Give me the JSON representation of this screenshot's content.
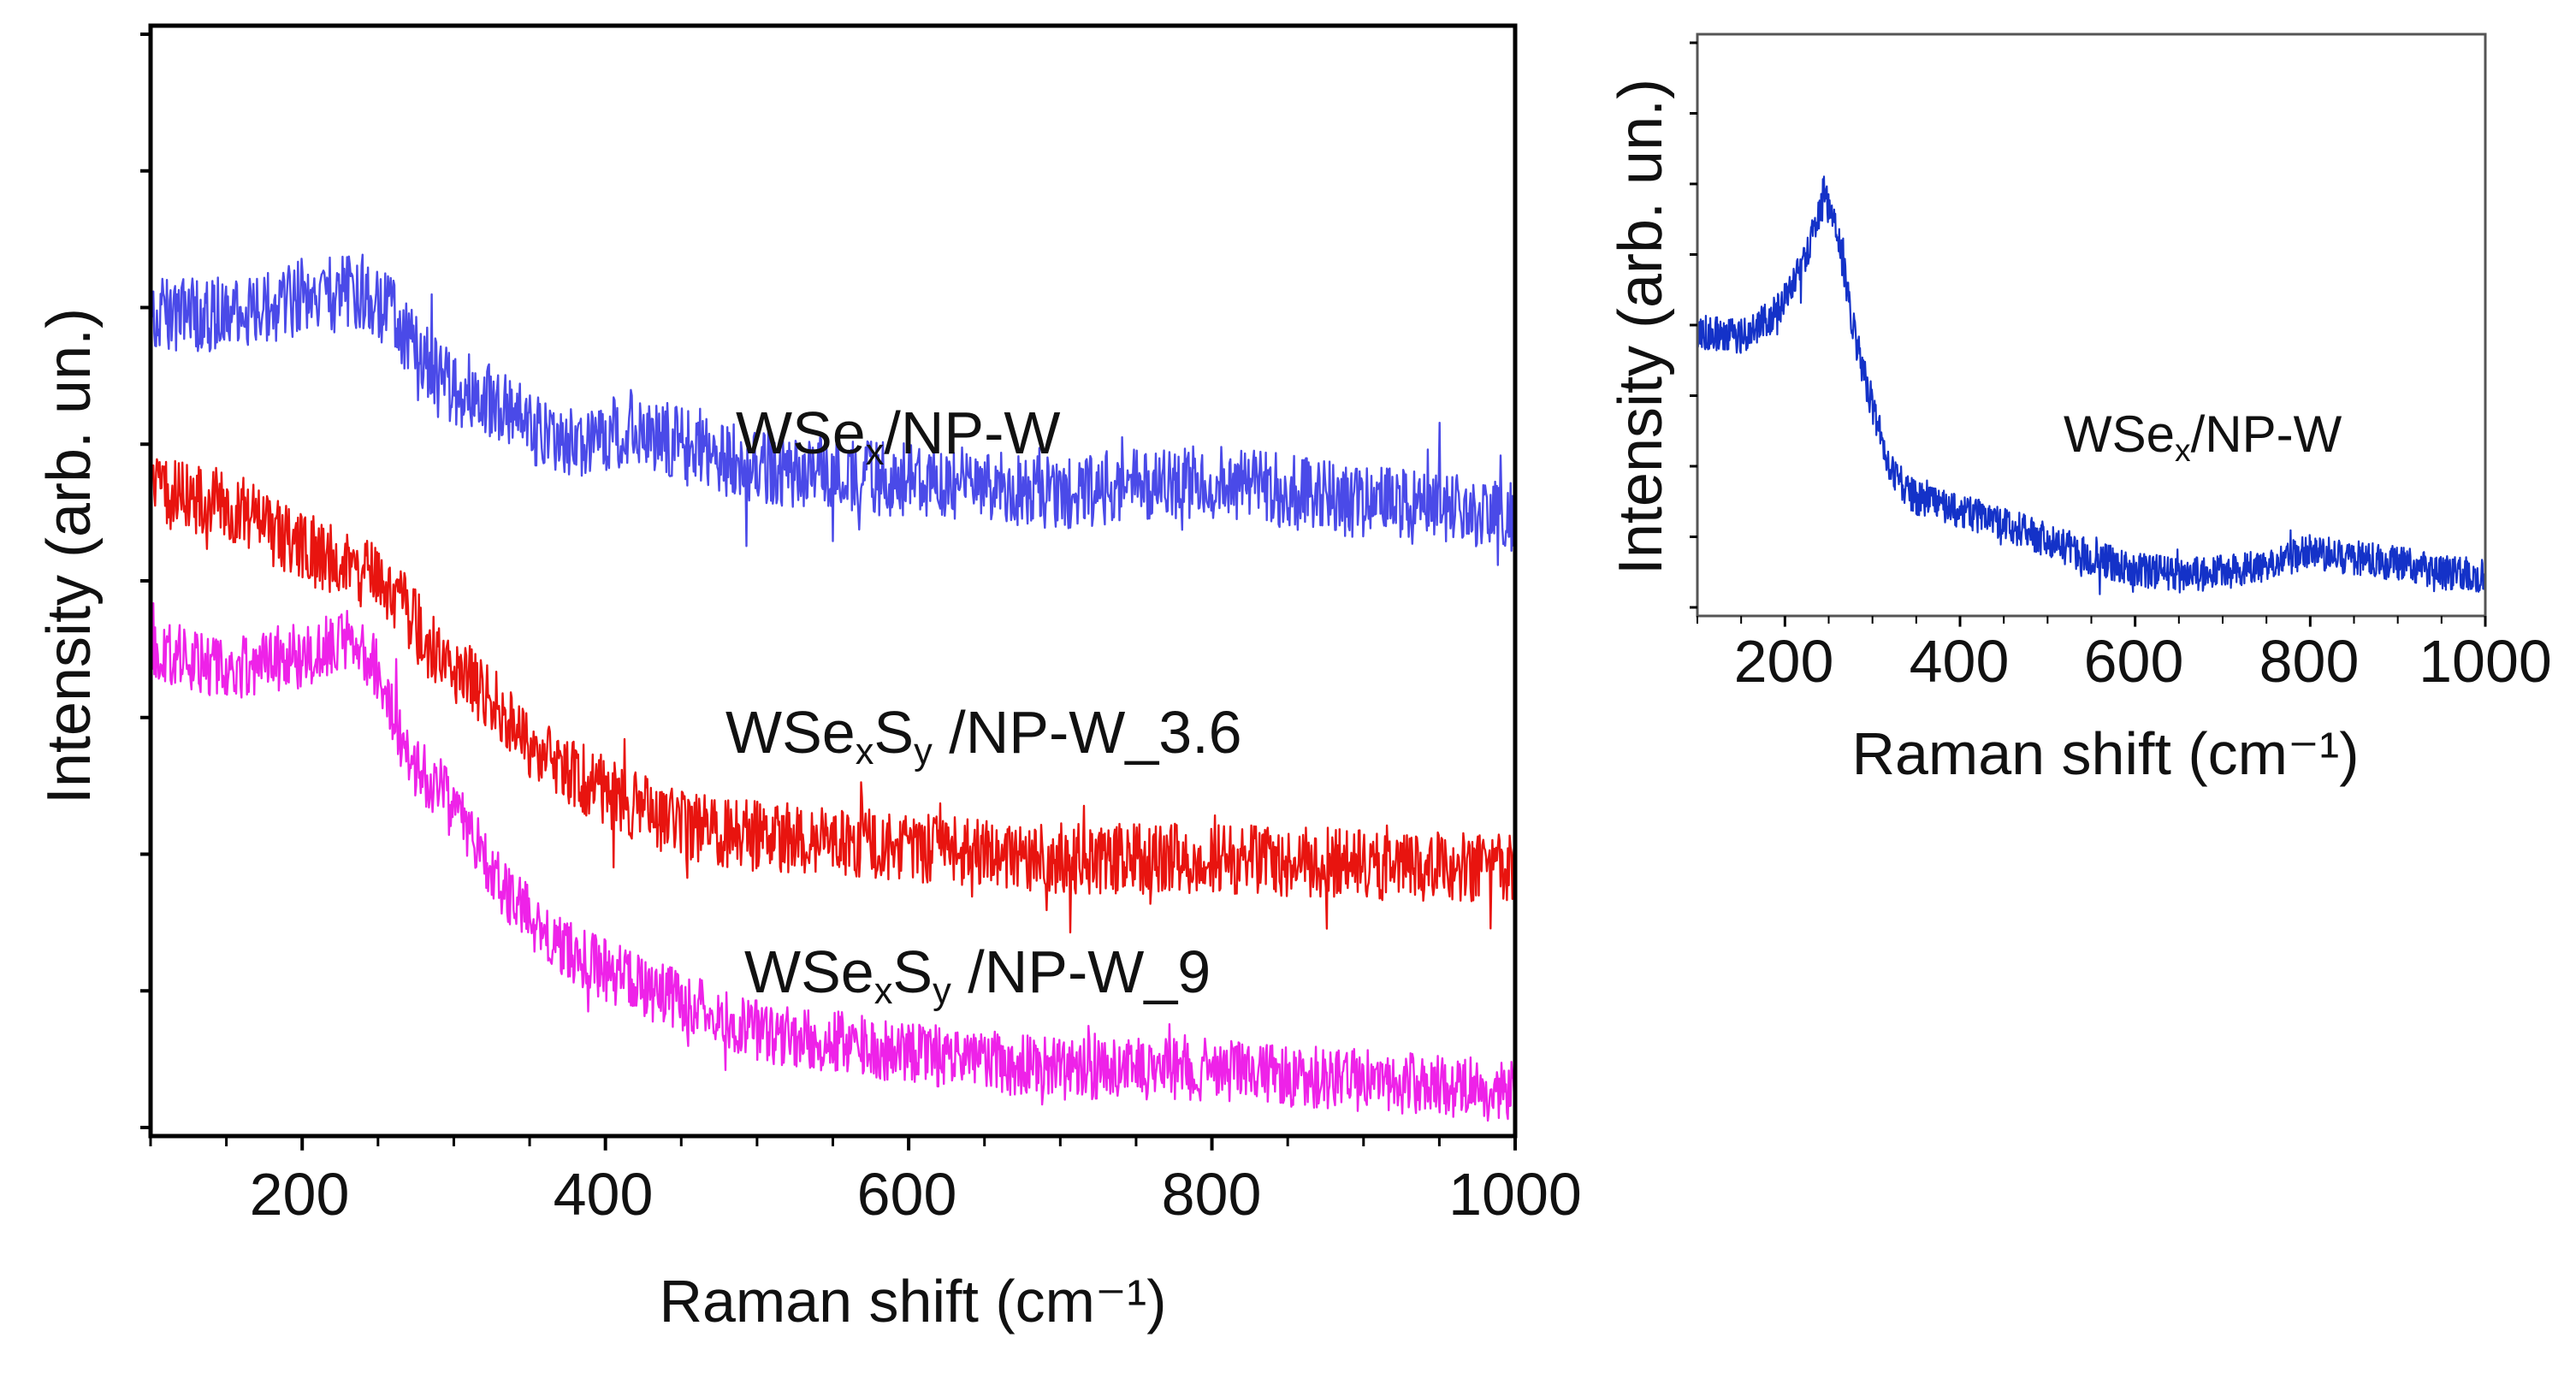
{
  "chart_data": [
    {
      "type": "line",
      "id": "main",
      "xlabel": "Raman shift (cm⁻¹)",
      "ylabel": "Intensity (arb. un.)",
      "xlim": [
        100,
        1000
      ],
      "ylim": [
        0,
        100
      ],
      "x_ticks": [
        200,
        400,
        600,
        800,
        1000
      ],
      "x_tick_labels": [
        "200",
        "400",
        "600",
        "800",
        "1000"
      ],
      "grid": false,
      "series": [
        {
          "name": "WSeₓ/NP-W",
          "label_parts": [
            {
              "t": "WSe"
            },
            {
              "t": "x",
              "sub": true
            },
            {
              "t": "/NP-W"
            }
          ],
          "color": "#4a4ae8",
          "noise": 3.4,
          "points": [
            [
              100,
              74
            ],
            [
              150,
              74
            ],
            [
              200,
              75.5
            ],
            [
              240,
              76
            ],
            [
              260,
              74
            ],
            [
              290,
              68
            ],
            [
              330,
              66
            ],
            [
              370,
              62
            ],
            [
              420,
              64
            ],
            [
              470,
              61
            ],
            [
              520,
              60
            ],
            [
              600,
              59
            ],
            [
              700,
              58
            ],
            [
              800,
              59
            ],
            [
              900,
              57
            ],
            [
              1000,
              56
            ]
          ]
        },
        {
          "name": "WSeₓSᵧ/NP-W_3.6",
          "label_parts": [
            {
              "t": "WSe"
            },
            {
              "t": "x",
              "sub": true
            },
            {
              "t": "S"
            },
            {
              "t": "y",
              "sub": true
            },
            {
              "t": " /NP-W_3.6"
            }
          ],
          "color": "#e8140f",
          "noise": 3.2,
          "points": [
            [
              100,
              58
            ],
            [
              150,
              57
            ],
            [
              200,
              53
            ],
            [
              240,
              51
            ],
            [
              260,
              49
            ],
            [
              290,
              43
            ],
            [
              320,
              40
            ],
            [
              350,
              35
            ],
            [
              400,
              31
            ],
            [
              450,
              28
            ],
            [
              500,
              27
            ],
            [
              600,
              26
            ],
            [
              700,
              25
            ],
            [
              800,
              25
            ],
            [
              900,
              24.5
            ],
            [
              1000,
              24
            ]
          ]
        },
        {
          "name": "WSeₓSᵧ/NP-W_9",
          "label_parts": [
            {
              "t": "WSe"
            },
            {
              "t": "x",
              "sub": true
            },
            {
              "t": "S"
            },
            {
              "t": "y",
              "sub": true
            },
            {
              "t": " /NP-W_9"
            }
          ],
          "color": "#ee22e8",
          "noise": 2.8,
          "points": [
            [
              100,
              44
            ],
            [
              150,
              42
            ],
            [
              200,
              43
            ],
            [
              230,
              45
            ],
            [
              250,
              42
            ],
            [
              270,
              34
            ],
            [
              300,
              30
            ],
            [
              330,
              23
            ],
            [
              360,
              18
            ],
            [
              400,
              15
            ],
            [
              450,
              12
            ],
            [
              500,
              9.5
            ],
            [
              600,
              7.5
            ],
            [
              700,
              6
            ],
            [
              800,
              6
            ],
            [
              900,
              5
            ],
            [
              1000,
              4
            ]
          ]
        }
      ]
    },
    {
      "type": "line",
      "id": "inset",
      "xlabel": "Raman shift (cm⁻¹)",
      "ylabel": "Intensity (arb. un.)",
      "xlim": [
        100,
        1000
      ],
      "ylim": [
        0,
        100
      ],
      "x_ticks": [
        200,
        400,
        600,
        800,
        1000
      ],
      "x_tick_labels": [
        "200",
        "400",
        "600",
        "800",
        "1000"
      ],
      "grid": false,
      "series": [
        {
          "name": "WSeₓ/NP-W",
          "label_parts": [
            {
              "t": "WSe"
            },
            {
              "t": "x",
              "sub": true
            },
            {
              "t": "/NP-W"
            }
          ],
          "color": "#1432c8",
          "noise": 3.0,
          "points": [
            [
              100,
              49
            ],
            [
              150,
              48
            ],
            [
              190,
              52
            ],
            [
              220,
              60
            ],
            [
              245,
              72
            ],
            [
              260,
              66
            ],
            [
              280,
              48
            ],
            [
              300,
              36
            ],
            [
              320,
              25
            ],
            [
              350,
              20
            ],
            [
              400,
              18
            ],
            [
              450,
              16
            ],
            [
              500,
              13
            ],
            [
              550,
              10
            ],
            [
              600,
              8
            ],
            [
              650,
              7
            ],
            [
              700,
              7.5
            ],
            [
              750,
              9
            ],
            [
              800,
              11
            ],
            [
              850,
              10
            ],
            [
              900,
              9
            ],
            [
              950,
              7.5
            ],
            [
              1000,
              7
            ]
          ]
        }
      ]
    }
  ]
}
